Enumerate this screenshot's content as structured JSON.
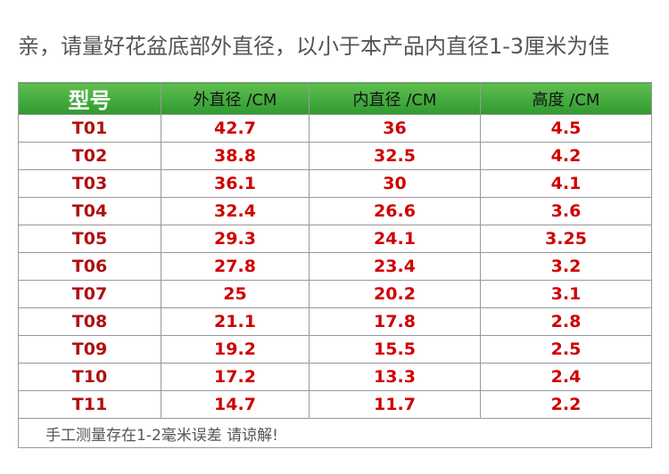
{
  "title": "亲，请量好花盆底部外直径，以小于本产品内直径1-3厘米为佳",
  "table": {
    "header": [
      "型号",
      "外直径 /CM",
      "内直径 /CM",
      "高度 /CM"
    ],
    "rows": [
      [
        "T01",
        "42.7",
        "36",
        "4.5"
      ],
      [
        "T02",
        "38.8",
        "32.5",
        "4.2"
      ],
      [
        "T03",
        "36.1",
        "30",
        "4.1"
      ],
      [
        "T04",
        "32.4",
        "26.6",
        "3.6"
      ],
      [
        "T05",
        "29.3",
        "24.1",
        "3.25"
      ],
      [
        "T06",
        "27.8",
        "23.4",
        "3.2"
      ],
      [
        "T07",
        "25",
        "20.2",
        "3.1"
      ],
      [
        "T08",
        "21.1",
        "17.8",
        "2.8"
      ],
      [
        "T09",
        "19.2",
        "15.5",
        "2.5"
      ],
      [
        "T10",
        "17.2",
        "13.3",
        "2.4"
      ],
      [
        "T11",
        "14.7",
        "11.7",
        "2.2"
      ]
    ],
    "footer": "手工测量存在1-2毫米误差 请谅解!"
  }
}
